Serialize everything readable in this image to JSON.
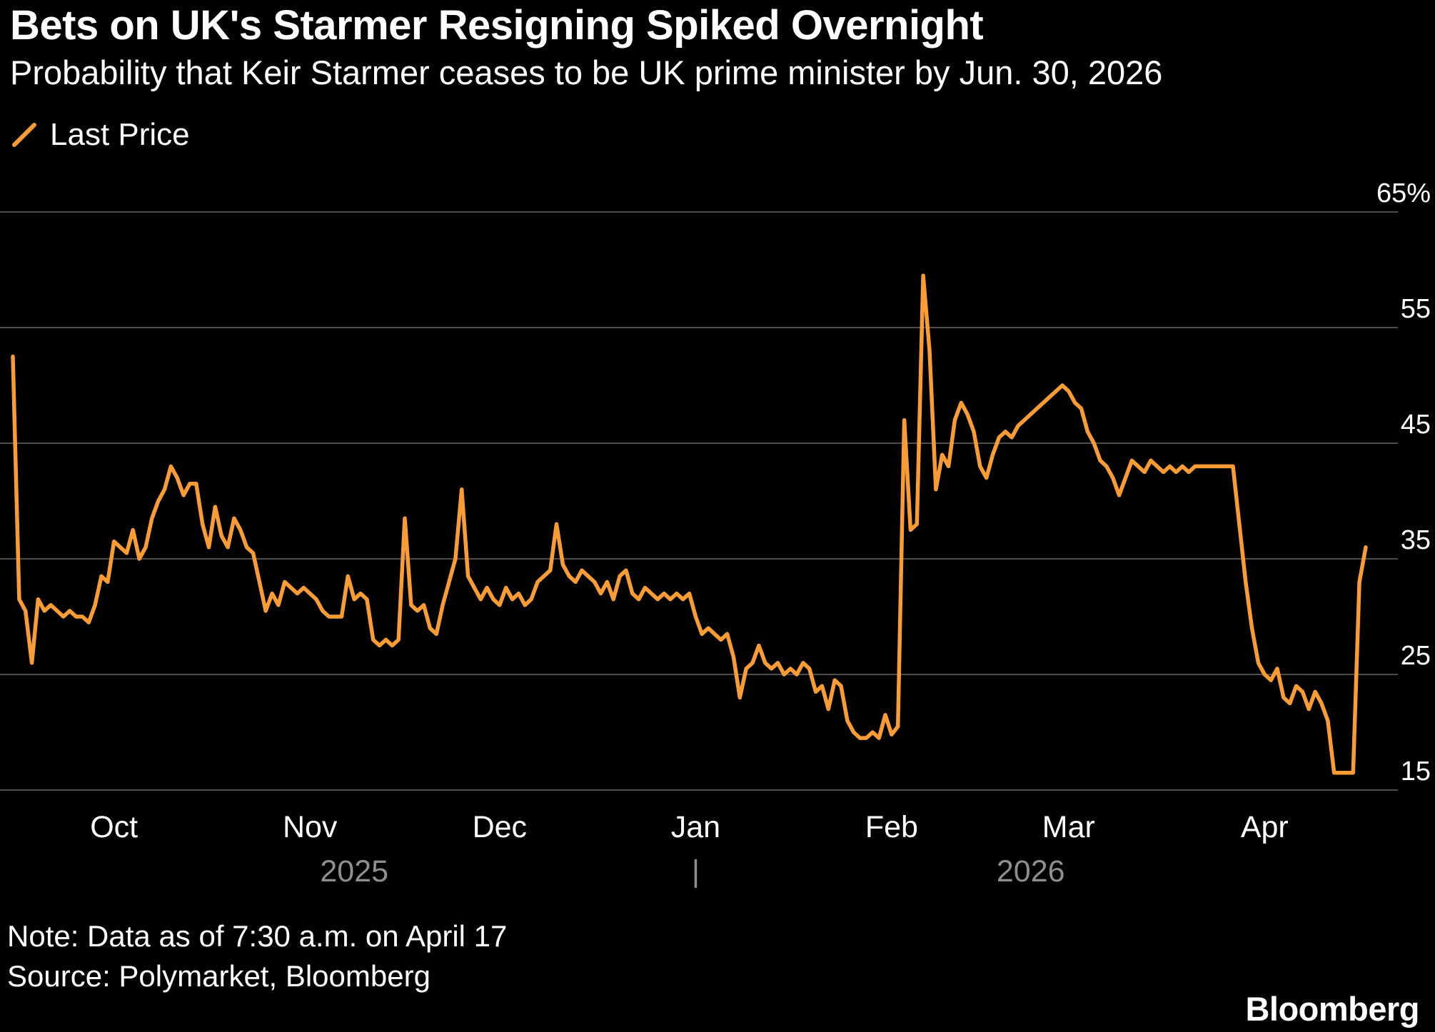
{
  "colors": {
    "accent": "#F89C33",
    "background": "#000000",
    "grid": "#4D4D4D",
    "text": "#FFFFFF",
    "muted": "#8F8F8F"
  },
  "footer": {
    "note": "Note: Data as of 7:30 a.m. on April 17",
    "source": "Source: Polymarket, Bloomberg",
    "brand": "Bloomberg"
  },
  "chart_data": {
    "type": "line",
    "title": "Bets on UK's Starmer Resigning Spiked Overnight",
    "subtitle": "Probability that Keir Starmer ceases to be UK prime minister by Jun. 30, 2026",
    "legend_position": "top-left",
    "unit": "%",
    "grid": "horizontal",
    "ylim": [
      13.5,
      67
    ],
    "y_ticks": [
      65,
      55,
      45,
      35,
      25,
      15
    ],
    "y_tick_labels": [
      "65%",
      "55",
      "45",
      "35",
      "25",
      "15"
    ],
    "x_ticks": [
      {
        "day": 16,
        "label": "Oct"
      },
      {
        "day": 47,
        "label": "Nov"
      },
      {
        "day": 77,
        "label": "Dec"
      },
      {
        "day": 108,
        "label": "Jan"
      },
      {
        "day": 139,
        "label": "Feb"
      },
      {
        "day": 167,
        "label": "Mar"
      },
      {
        "day": 198,
        "label": "Apr"
      }
    ],
    "x_year_labels": [
      {
        "day": 54,
        "label": "2025"
      },
      {
        "day": 161,
        "label": "2026"
      }
    ],
    "x_year_divider_day": 108,
    "series": [
      {
        "name": "Last Price",
        "values": [
          52.5,
          31.5,
          30.5,
          26,
          31.5,
          30.5,
          31,
          30.5,
          30,
          30.5,
          30,
          30,
          29.5,
          31,
          33.5,
          33,
          36.5,
          36,
          35.5,
          37.5,
          35,
          36,
          38.5,
          40,
          41,
          43,
          42,
          40.5,
          41.5,
          41.5,
          38,
          36,
          39.5,
          37,
          36,
          38.5,
          37.5,
          36,
          35.5,
          33,
          30.5,
          32,
          31,
          33,
          32.5,
          32,
          32.5,
          32,
          31.5,
          30.5,
          30,
          30,
          30,
          33.5,
          31.5,
          32,
          31.5,
          28,
          27.5,
          28,
          27.5,
          28,
          38.5,
          31,
          30.5,
          31,
          29,
          28.5,
          31,
          33,
          35,
          41,
          33.5,
          32.5,
          31.5,
          32.5,
          31.5,
          31,
          32.5,
          31.5,
          32,
          31,
          31.5,
          33,
          33.5,
          34,
          38,
          34.5,
          33.5,
          33,
          34,
          33.5,
          33,
          32,
          33,
          31.5,
          33.5,
          34,
          32,
          31.5,
          32.5,
          32,
          31.5,
          32,
          31.5,
          32,
          31.5,
          32,
          30,
          28.5,
          29,
          28.5,
          28,
          28.5,
          26.5,
          23,
          25.5,
          26,
          27.5,
          26,
          25.5,
          26,
          25,
          25.5,
          25,
          26,
          25.5,
          23.5,
          24,
          22,
          24.5,
          24,
          21,
          20,
          19.5,
          19.5,
          20,
          19.5,
          21.5,
          19.8,
          20.5,
          47,
          37.5,
          38,
          59.5,
          53,
          41,
          44,
          43,
          47,
          48.5,
          47.5,
          46,
          43,
          42,
          44,
          45.5,
          46,
          45.5,
          46.5,
          47,
          47.5,
          48,
          48.5,
          49,
          49.5,
          50,
          49.5,
          48.5,
          48,
          46,
          45,
          43.5,
          43,
          42,
          40.5,
          42,
          43.5,
          43,
          42.5,
          43.5,
          43,
          42.5,
          43,
          42.5,
          43,
          42.5,
          43,
          43,
          43,
          43,
          43,
          43,
          43,
          38,
          33,
          29,
          26,
          25,
          24.5,
          25.5,
          23,
          22.5,
          24,
          23.5,
          22,
          23.5,
          22.5,
          21,
          16.5,
          16.5,
          16.5,
          16.5,
          33,
          36
        ]
      }
    ]
  }
}
